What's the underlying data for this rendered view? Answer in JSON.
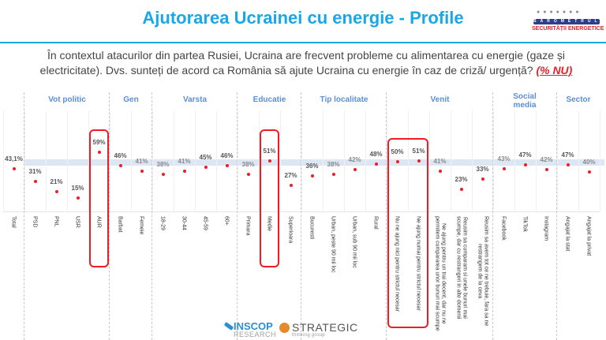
{
  "header": {
    "title": "Ajutorarea Ucrainei cu energie - Profile",
    "logo": {
      "name": "BAROMETRUL",
      "subtitle": "SECURITĂȚII ENERGETICE"
    }
  },
  "question": {
    "text": "În contextul atacurilor din partea Rusiei, Ucraina are frecvent probleme cu alimentarea cu energie (gaze și electricitate). Dvs. sunteți de acord ca România să ajute Ucraina cu energie în caz de criză/ urgență?",
    "emphasis": "(% NU)"
  },
  "colors": {
    "title": "#1aa7e6",
    "group_label": "#5b8fd6",
    "marker": "#ee1c24",
    "highlight": "#ee1c24",
    "band": "#dde6f3"
  },
  "chart_data": {
    "type": "scatter",
    "title": "Ajutorarea Ucrainei cu energie - Profile",
    "ylabel": "% NU",
    "ylim": [
      0,
      100
    ],
    "reference_band": 43.1,
    "groups": [
      {
        "name": "",
        "categories": [
          "Total"
        ]
      },
      {
        "name": "Vot politic",
        "categories": [
          "PSD",
          "PNL",
          "USR",
          "AUR"
        ]
      },
      {
        "name": "Gen",
        "categories": [
          "Barbat",
          "Femeie"
        ]
      },
      {
        "name": "Varsta",
        "categories": [
          "18-29",
          "30-44",
          "45-59",
          "60+"
        ]
      },
      {
        "name": "Educatie",
        "categories": [
          "Primara",
          "Medie",
          "Superioara"
        ]
      },
      {
        "name": "Tip localitate",
        "categories": [
          "Bucuresti",
          "Urban, peste 90 mii loc",
          "Urban, sub 90 mii loc",
          "Rural"
        ]
      },
      {
        "name": "Venit",
        "categories": [
          "Nu ne ajung nici pentru strictul necesar",
          "Ne ajung numai pentru strictul necesar",
          "Ne ajung pentru un trai decent, dar nu ne permitem cumpararea unor bunuri mai scumpe",
          "Reusim sa cumparam si unele bunuri mai scumpe, dar cu restrangeri in alte domenii",
          "Reusim sa avem tot ce ne trebuie, fara sa ne restrangem de la ceva"
        ]
      },
      {
        "name": "Social media",
        "categories": [
          "Facebook",
          "TikTok",
          "Instagram"
        ]
      },
      {
        "name": "Sector",
        "categories": [
          "Angajat la stat",
          "Angajat la privat"
        ]
      }
    ],
    "categories": [
      "Total",
      "PSD",
      "PNL",
      "USR",
      "AUR",
      "Barbat",
      "Femeie",
      "18-29",
      "30-44",
      "45-59",
      "60+",
      "Primara",
      "Medie",
      "Superioara",
      "Bucuresti",
      "Urban, peste 90 mii loc",
      "Urban, sub 90 mii loc",
      "Rural",
      "Nu ne ajung nici pentru strictul necesar",
      "Ne ajung numai pentru strictul necesar",
      "Ne ajung pentru un trai decent, dar nu ne permitem cumpararea unor bunuri mai scumpe",
      "Reusim sa cumparam si unele bunuri mai scumpe, dar cu restrangeri in alte domenii",
      "Reusim sa avem tot ce ne trebuie, fara sa ne restrangem de la ceva",
      "Facebook",
      "TikTok",
      "Instagram",
      "Angajat la stat",
      "Angajat la privat"
    ],
    "values": [
      43.1,
      31,
      21,
      15,
      59,
      46,
      41,
      38,
      41,
      45,
      46,
      38,
      51,
      27,
      36,
      38,
      42,
      48,
      50,
      51,
      41,
      23,
      33,
      43,
      47,
      42,
      47,
      40
    ],
    "value_labels": [
      "43,1%",
      "31%",
      "21%",
      "15%",
      "59%",
      "46%",
      "41%",
      "38%",
      "41%",
      "45%",
      "46%",
      "38%",
      "51%",
      "27%",
      "36%",
      "38%",
      "42%",
      "48%",
      "50%",
      "51%",
      "41%",
      "23%",
      "33%",
      "43%",
      "47%",
      "42%",
      "47%",
      "40%"
    ],
    "highlighted": [
      "AUR",
      "Medie",
      "Nu ne ajung nici pentru strictul necesar",
      "Ne ajung numai pentru strictul necesar"
    ],
    "grid": true,
    "legend": null
  },
  "xlabels": [
    "Total",
    "PSD",
    "PNL",
    "USR",
    "AUR",
    "Barbat",
    "Femeie",
    "18-29",
    "30-44",
    "45-59",
    "60+",
    "Primara",
    "Medie",
    "Superioara",
    "Bucuresti",
    "Urban, peste 90 mii loc",
    "Urban, sub 90 mii loc",
    "Rural",
    "Nu ne ajung nici pentru strictul necesar",
    "Ne ajung numai pentru strictul necesar",
    "Ne ajung pentru un trai decent, dar nu ne\npermitem cumpararea unor bunuri mai scumpe",
    "Reusim sa cumparam si unele bunuri mai\nscumpe, dar cu restrangeri in alte domenii",
    "Reusim sa avem tot ce ne trebuie, fara sa ne\nrestrangem de la ceva",
    "Facebook",
    "TikTok",
    "Instagram",
    "Angajat la stat",
    "Angajat la privat"
  ],
  "group_labels": [
    "Vot politic",
    "Gen",
    "Varsta",
    "Educatie",
    "Tip localitate",
    "Venit",
    "Social media",
    "Sector"
  ],
  "footer": {
    "logo1_main": "INSCOP",
    "logo1_sub": "RESEARCH",
    "logo2_main": "STRATEGIC",
    "logo2_sub": "thinking group"
  }
}
